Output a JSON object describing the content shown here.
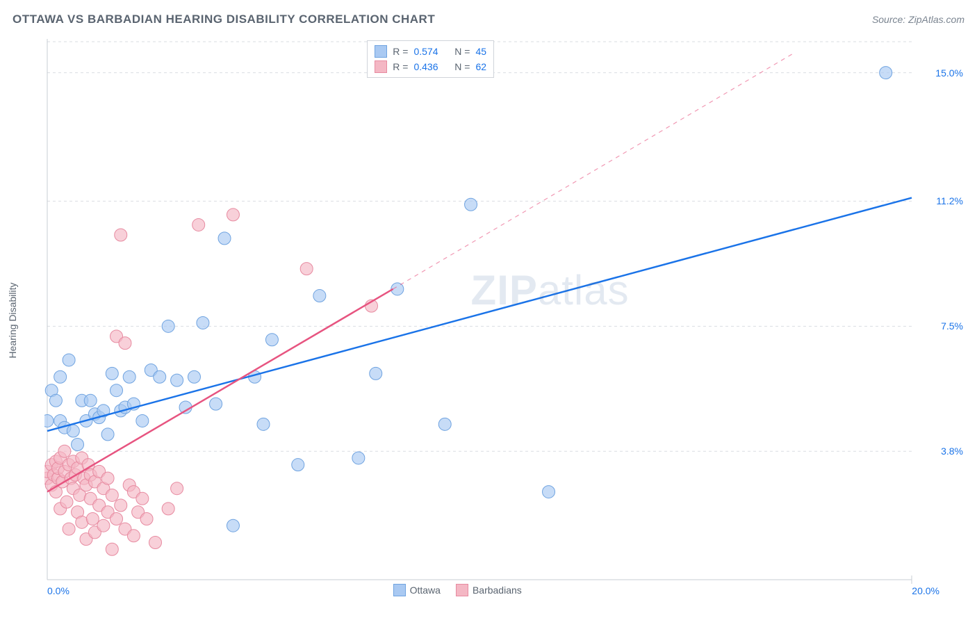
{
  "title": "OTTAWA VS BARBADIAN HEARING DISABILITY CORRELATION CHART",
  "source": "Source: ZipAtlas.com",
  "y_axis_label": "Hearing Disability",
  "watermark_a": "ZIP",
  "watermark_b": "atlas",
  "chart": {
    "type": "scatter",
    "xlim": [
      0,
      20
    ],
    "ylim": [
      0,
      16
    ],
    "x_tick_start": "0.0%",
    "x_tick_end": "20.0%",
    "y_ticks": [
      {
        "v": 3.8,
        "label": "3.8%"
      },
      {
        "v": 7.5,
        "label": "7.5%"
      },
      {
        "v": 11.2,
        "label": "11.2%"
      },
      {
        "v": 15.0,
        "label": "15.0%"
      }
    ],
    "grid_color": "#d9dde2",
    "grid_dash": "4 4",
    "axis_color": "#c7ccd3",
    "background_color": "#ffffff",
    "series": [
      {
        "name": "Ottawa",
        "marker_color": "#a9c9f2",
        "marker_stroke": "#6fa3e0",
        "marker_opacity": 0.65,
        "marker_radius": 9,
        "line_color": "#1a73e8",
        "line_width": 2.5,
        "trend": {
          "x1": 0,
          "y1": 4.4,
          "x2": 20,
          "y2": 11.3,
          "dashed": false
        },
        "r": "0.574",
        "n": "45",
        "points": [
          [
            0.0,
            4.7
          ],
          [
            0.1,
            5.6
          ],
          [
            0.2,
            5.3
          ],
          [
            0.3,
            4.7
          ],
          [
            0.3,
            6.0
          ],
          [
            0.4,
            4.5
          ],
          [
            0.5,
            6.5
          ],
          [
            0.6,
            4.4
          ],
          [
            0.7,
            4.0
          ],
          [
            0.8,
            5.3
          ],
          [
            0.9,
            4.7
          ],
          [
            1.0,
            5.3
          ],
          [
            1.1,
            4.9
          ],
          [
            1.2,
            4.8
          ],
          [
            1.3,
            5.0
          ],
          [
            1.4,
            4.3
          ],
          [
            1.5,
            6.1
          ],
          [
            1.6,
            5.6
          ],
          [
            1.7,
            5.0
          ],
          [
            1.8,
            5.1
          ],
          [
            1.9,
            6.0
          ],
          [
            2.0,
            5.2
          ],
          [
            2.2,
            4.7
          ],
          [
            2.4,
            6.2
          ],
          [
            2.6,
            6.0
          ],
          [
            2.8,
            7.5
          ],
          [
            3.0,
            5.9
          ],
          [
            3.2,
            5.1
          ],
          [
            3.4,
            6.0
          ],
          [
            3.6,
            7.6
          ],
          [
            3.9,
            5.2
          ],
          [
            4.1,
            10.1
          ],
          [
            4.3,
            1.6
          ],
          [
            4.8,
            6.0
          ],
          [
            5.0,
            4.6
          ],
          [
            5.2,
            7.1
          ],
          [
            5.8,
            3.4
          ],
          [
            6.3,
            8.4
          ],
          [
            7.2,
            3.6
          ],
          [
            7.6,
            6.1
          ],
          [
            8.1,
            8.6
          ],
          [
            9.2,
            4.6
          ],
          [
            9.8,
            11.1
          ],
          [
            11.6,
            2.6
          ],
          [
            19.4,
            15.0
          ]
        ]
      },
      {
        "name": "Barbadians",
        "marker_color": "#f4b7c4",
        "marker_stroke": "#e78aa0",
        "marker_opacity": 0.65,
        "marker_radius": 9,
        "line_color": "#e75480",
        "line_width": 2.5,
        "trend": {
          "x1": 0,
          "y1": 2.6,
          "x2": 8.0,
          "y2": 8.6,
          "dashed": false
        },
        "trend_ext": {
          "x1": 8.0,
          "y1": 8.6,
          "x2": 17.3,
          "y2": 15.6,
          "dashed": true
        },
        "r": "0.436",
        "n": "62",
        "points": [
          [
            0.0,
            3.0
          ],
          [
            0.0,
            3.2
          ],
          [
            0.1,
            2.8
          ],
          [
            0.1,
            3.4
          ],
          [
            0.15,
            3.1
          ],
          [
            0.2,
            3.5
          ],
          [
            0.2,
            2.6
          ],
          [
            0.25,
            3.0
          ],
          [
            0.25,
            3.3
          ],
          [
            0.3,
            3.6
          ],
          [
            0.3,
            2.1
          ],
          [
            0.35,
            2.9
          ],
          [
            0.4,
            3.2
          ],
          [
            0.4,
            3.8
          ],
          [
            0.45,
            2.3
          ],
          [
            0.5,
            3.4
          ],
          [
            0.5,
            1.5
          ],
          [
            0.55,
            3.0
          ],
          [
            0.6,
            2.7
          ],
          [
            0.6,
            3.5
          ],
          [
            0.65,
            3.1
          ],
          [
            0.7,
            2.0
          ],
          [
            0.7,
            3.3
          ],
          [
            0.75,
            2.5
          ],
          [
            0.8,
            3.6
          ],
          [
            0.8,
            1.7
          ],
          [
            0.85,
            3.0
          ],
          [
            0.9,
            2.8
          ],
          [
            0.9,
            1.2
          ],
          [
            0.95,
            3.4
          ],
          [
            1.0,
            2.4
          ],
          [
            1.0,
            3.1
          ],
          [
            1.05,
            1.8
          ],
          [
            1.1,
            2.9
          ],
          [
            1.1,
            1.4
          ],
          [
            1.2,
            2.2
          ],
          [
            1.2,
            3.2
          ],
          [
            1.3,
            2.7
          ],
          [
            1.3,
            1.6
          ],
          [
            1.4,
            2.0
          ],
          [
            1.4,
            3.0
          ],
          [
            1.5,
            0.9
          ],
          [
            1.5,
            2.5
          ],
          [
            1.6,
            1.8
          ],
          [
            1.6,
            7.2
          ],
          [
            1.7,
            2.2
          ],
          [
            1.7,
            10.2
          ],
          [
            1.8,
            1.5
          ],
          [
            1.8,
            7.0
          ],
          [
            1.9,
            2.8
          ],
          [
            2.0,
            1.3
          ],
          [
            2.0,
            2.6
          ],
          [
            2.1,
            2.0
          ],
          [
            2.2,
            2.4
          ],
          [
            2.3,
            1.8
          ],
          [
            2.5,
            1.1
          ],
          [
            2.8,
            2.1
          ],
          [
            3.0,
            2.7
          ],
          [
            3.5,
            10.5
          ],
          [
            4.3,
            10.8
          ],
          [
            6.0,
            9.2
          ],
          [
            7.5,
            8.1
          ]
        ]
      }
    ],
    "legend": {
      "bottom_items": [
        "Ottawa",
        "Barbadians"
      ],
      "r_label": "R =",
      "n_label": "N ="
    }
  }
}
